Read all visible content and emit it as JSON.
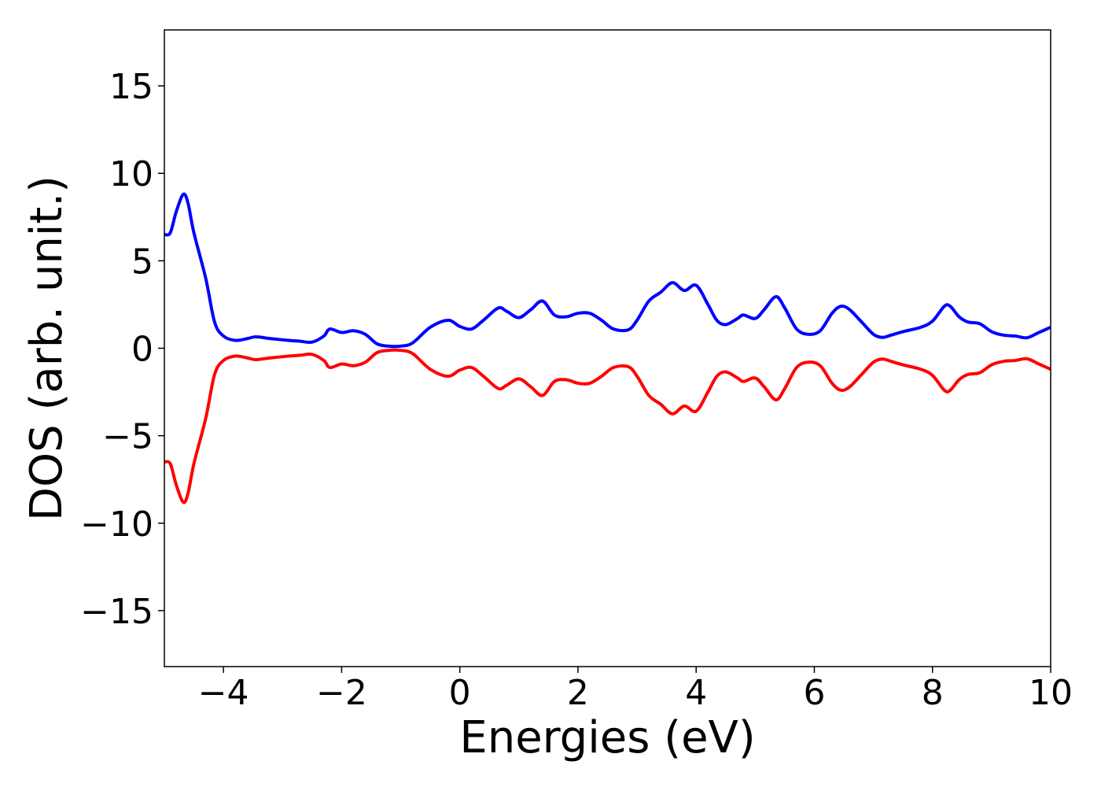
{
  "chart_data": {
    "type": "line",
    "title": "",
    "xlabel": "Energies (eV)",
    "ylabel": "DOS (arb. unit.)",
    "xlim": [
      -5,
      10
    ],
    "ylim": [
      -18.2,
      18.2
    ],
    "grid": false,
    "legend": "none",
    "x_ticks": [
      -4,
      -2,
      0,
      2,
      4,
      6,
      8,
      10
    ],
    "x_tick_labels": [
      "−4",
      "−2",
      "0",
      "2",
      "4",
      "6",
      "8",
      "10"
    ],
    "y_ticks": [
      15,
      10,
      5,
      0,
      -5,
      -10,
      -15
    ],
    "y_tick_labels": [
      "15",
      "10",
      "5",
      "0",
      "−5",
      "−10",
      "−15"
    ],
    "series": [
      {
        "color": "#0000ff",
        "points": [
          [
            -5.0,
            6.5
          ],
          [
            -4.9,
            6.6
          ],
          [
            -4.8,
            7.8
          ],
          [
            -4.68,
            8.8
          ],
          [
            -4.6,
            8.3
          ],
          [
            -4.5,
            6.6
          ],
          [
            -4.3,
            4.0
          ],
          [
            -4.15,
            1.5
          ],
          [
            -4.0,
            0.7
          ],
          [
            -3.8,
            0.45
          ],
          [
            -3.6,
            0.55
          ],
          [
            -3.45,
            0.65
          ],
          [
            -3.2,
            0.55
          ],
          [
            -2.9,
            0.45
          ],
          [
            -2.7,
            0.4
          ],
          [
            -2.5,
            0.35
          ],
          [
            -2.3,
            0.7
          ],
          [
            -2.2,
            1.1
          ],
          [
            -2.0,
            0.9
          ],
          [
            -1.8,
            1.0
          ],
          [
            -1.6,
            0.8
          ],
          [
            -1.4,
            0.25
          ],
          [
            -1.2,
            0.12
          ],
          [
            -1.0,
            0.12
          ],
          [
            -0.8,
            0.3
          ],
          [
            -0.5,
            1.2
          ],
          [
            -0.2,
            1.6
          ],
          [
            0.0,
            1.25
          ],
          [
            0.2,
            1.1
          ],
          [
            0.4,
            1.6
          ],
          [
            0.65,
            2.3
          ],
          [
            0.8,
            2.1
          ],
          [
            1.0,
            1.75
          ],
          [
            1.2,
            2.2
          ],
          [
            1.4,
            2.7
          ],
          [
            1.6,
            1.9
          ],
          [
            1.8,
            1.8
          ],
          [
            2.0,
            2.0
          ],
          [
            2.2,
            2.0
          ],
          [
            2.4,
            1.6
          ],
          [
            2.6,
            1.1
          ],
          [
            2.85,
            1.05
          ],
          [
            3.0,
            1.6
          ],
          [
            3.2,
            2.7
          ],
          [
            3.4,
            3.2
          ],
          [
            3.6,
            3.75
          ],
          [
            3.8,
            3.3
          ],
          [
            4.0,
            3.6
          ],
          [
            4.2,
            2.5
          ],
          [
            4.35,
            1.6
          ],
          [
            4.5,
            1.35
          ],
          [
            4.7,
            1.7
          ],
          [
            4.8,
            1.9
          ],
          [
            5.0,
            1.7
          ],
          [
            5.15,
            2.2
          ],
          [
            5.35,
            2.95
          ],
          [
            5.5,
            2.3
          ],
          [
            5.7,
            1.1
          ],
          [
            5.9,
            0.8
          ],
          [
            6.1,
            1.0
          ],
          [
            6.3,
            2.0
          ],
          [
            6.45,
            2.4
          ],
          [
            6.6,
            2.2
          ],
          [
            6.8,
            1.5
          ],
          [
            7.0,
            0.8
          ],
          [
            7.15,
            0.62
          ],
          [
            7.3,
            0.75
          ],
          [
            7.5,
            0.95
          ],
          [
            7.8,
            1.2
          ],
          [
            8.0,
            1.55
          ],
          [
            8.2,
            2.4
          ],
          [
            8.3,
            2.4
          ],
          [
            8.45,
            1.8
          ],
          [
            8.6,
            1.5
          ],
          [
            8.8,
            1.4
          ],
          [
            9.0,
            0.95
          ],
          [
            9.2,
            0.75
          ],
          [
            9.4,
            0.7
          ],
          [
            9.6,
            0.6
          ],
          [
            9.8,
            0.9
          ],
          [
            10.0,
            1.2
          ]
        ]
      },
      {
        "color": "#ff0000",
        "points": [
          [
            -5.0,
            -6.5
          ],
          [
            -4.9,
            -6.6
          ],
          [
            -4.8,
            -7.8
          ],
          [
            -4.68,
            -8.8
          ],
          [
            -4.6,
            -8.3
          ],
          [
            -4.5,
            -6.6
          ],
          [
            -4.3,
            -4.0
          ],
          [
            -4.15,
            -1.5
          ],
          [
            -4.0,
            -0.7
          ],
          [
            -3.8,
            -0.45
          ],
          [
            -3.6,
            -0.55
          ],
          [
            -3.45,
            -0.65
          ],
          [
            -3.2,
            -0.55
          ],
          [
            -2.9,
            -0.45
          ],
          [
            -2.7,
            -0.4
          ],
          [
            -2.5,
            -0.35
          ],
          [
            -2.3,
            -0.7
          ],
          [
            -2.2,
            -1.1
          ],
          [
            -2.0,
            -0.9
          ],
          [
            -1.8,
            -1.0
          ],
          [
            -1.6,
            -0.8
          ],
          [
            -1.4,
            -0.25
          ],
          [
            -1.2,
            -0.12
          ],
          [
            -1.0,
            -0.12
          ],
          [
            -0.8,
            -0.3
          ],
          [
            -0.5,
            -1.2
          ],
          [
            -0.2,
            -1.6
          ],
          [
            0.0,
            -1.25
          ],
          [
            0.2,
            -1.1
          ],
          [
            0.4,
            -1.6
          ],
          [
            0.65,
            -2.3
          ],
          [
            0.8,
            -2.1
          ],
          [
            1.0,
            -1.75
          ],
          [
            1.2,
            -2.2
          ],
          [
            1.4,
            -2.7
          ],
          [
            1.6,
            -1.9
          ],
          [
            1.8,
            -1.8
          ],
          [
            2.0,
            -2.0
          ],
          [
            2.2,
            -2.0
          ],
          [
            2.4,
            -1.6
          ],
          [
            2.6,
            -1.1
          ],
          [
            2.85,
            -1.05
          ],
          [
            3.0,
            -1.6
          ],
          [
            3.2,
            -2.7
          ],
          [
            3.4,
            -3.2
          ],
          [
            3.6,
            -3.75
          ],
          [
            3.8,
            -3.3
          ],
          [
            4.0,
            -3.6
          ],
          [
            4.2,
            -2.5
          ],
          [
            4.35,
            -1.6
          ],
          [
            4.5,
            -1.35
          ],
          [
            4.7,
            -1.7
          ],
          [
            4.8,
            -1.9
          ],
          [
            5.0,
            -1.7
          ],
          [
            5.15,
            -2.2
          ],
          [
            5.35,
            -2.95
          ],
          [
            5.5,
            -2.3
          ],
          [
            5.7,
            -1.1
          ],
          [
            5.9,
            -0.8
          ],
          [
            6.1,
            -1.0
          ],
          [
            6.3,
            -2.0
          ],
          [
            6.45,
            -2.4
          ],
          [
            6.6,
            -2.2
          ],
          [
            6.8,
            -1.5
          ],
          [
            7.0,
            -0.8
          ],
          [
            7.15,
            -0.62
          ],
          [
            7.3,
            -0.75
          ],
          [
            7.5,
            -0.95
          ],
          [
            7.8,
            -1.2
          ],
          [
            8.0,
            -1.55
          ],
          [
            8.2,
            -2.4
          ],
          [
            8.3,
            -2.4
          ],
          [
            8.45,
            -1.8
          ],
          [
            8.6,
            -1.5
          ],
          [
            8.8,
            -1.4
          ],
          [
            9.0,
            -0.95
          ],
          [
            9.2,
            -0.75
          ],
          [
            9.4,
            -0.7
          ],
          [
            9.6,
            -0.6
          ],
          [
            9.8,
            -0.9
          ],
          [
            10.0,
            -1.2
          ]
        ]
      }
    ]
  }
}
